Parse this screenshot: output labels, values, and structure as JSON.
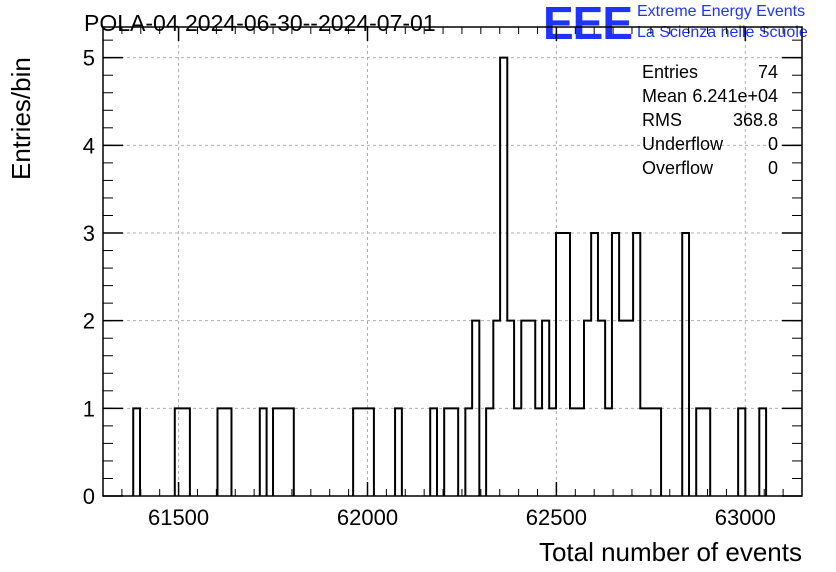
{
  "title": "POLA-04 2024-06-30--2024-07-01",
  "logo": {
    "mark": "EEE",
    "line1": "Extreme Energy Events",
    "line2": "La Scienza nelle Scuole",
    "color": "#1f33ff"
  },
  "stats": [
    {
      "key": "Entries",
      "value": "74"
    },
    {
      "key": "Mean",
      "value": "6.241e+04"
    },
    {
      "key": "RMS",
      "value": "368.8"
    },
    {
      "key": "Underflow",
      "value": "0"
    },
    {
      "key": "Overflow",
      "value": "0"
    }
  ],
  "chart_data": {
    "type": "bar",
    "title": "POLA-04 2024-06-30--2024-07-01",
    "xlabel": "Total number of events",
    "ylabel": "Entries/bin",
    "xlim": [
      61300,
      63150
    ],
    "ylim": [
      0,
      5.35
    ],
    "grid": true,
    "xticks": [
      61500,
      62000,
      62500,
      63000
    ],
    "yticks": [
      0,
      1,
      2,
      3,
      4,
      5
    ],
    "bins": [
      {
        "x0": 61380,
        "x1": 61398,
        "y": 1
      },
      {
        "x0": 61490,
        "x1": 61530,
        "y": 1
      },
      {
        "x0": 61603,
        "x1": 61640,
        "y": 1
      },
      {
        "x0": 61715,
        "x1": 61733,
        "y": 1
      },
      {
        "x0": 61750,
        "x1": 61805,
        "y": 1
      },
      {
        "x0": 61962,
        "x1": 62017,
        "y": 1
      },
      {
        "x0": 62073,
        "x1": 62091,
        "y": 1
      },
      {
        "x0": 62166,
        "x1": 62184,
        "y": 1
      },
      {
        "x0": 62203,
        "x1": 62240,
        "y": 1
      },
      {
        "x0": 62259,
        "x1": 62277,
        "y": 1
      },
      {
        "x0": 62277,
        "x1": 62296,
        "y": 2
      },
      {
        "x0": 62314,
        "x1": 62333,
        "y": 1
      },
      {
        "x0": 62333,
        "x1": 62351,
        "y": 2
      },
      {
        "x0": 62351,
        "x1": 62370,
        "y": 5
      },
      {
        "x0": 62370,
        "x1": 62388,
        "y": 2
      },
      {
        "x0": 62388,
        "x1": 62407,
        "y": 1
      },
      {
        "x0": 62407,
        "x1": 62444,
        "y": 2
      },
      {
        "x0": 62444,
        "x1": 62462,
        "y": 1
      },
      {
        "x0": 62462,
        "x1": 62481,
        "y": 2
      },
      {
        "x0": 62481,
        "x1": 62499,
        "y": 1
      },
      {
        "x0": 62499,
        "x1": 62536,
        "y": 3
      },
      {
        "x0": 62536,
        "x1": 62573,
        "y": 1
      },
      {
        "x0": 62573,
        "x1": 62592,
        "y": 2
      },
      {
        "x0": 62592,
        "x1": 62610,
        "y": 3
      },
      {
        "x0": 62610,
        "x1": 62629,
        "y": 2
      },
      {
        "x0": 62629,
        "x1": 62647,
        "y": 1
      },
      {
        "x0": 62647,
        "x1": 62666,
        "y": 3
      },
      {
        "x0": 62666,
        "x1": 62703,
        "y": 2
      },
      {
        "x0": 62703,
        "x1": 62722,
        "y": 3
      },
      {
        "x0": 62722,
        "x1": 62777,
        "y": 1
      },
      {
        "x0": 62833,
        "x1": 62851,
        "y": 3
      },
      {
        "x0": 62870,
        "x1": 62907,
        "y": 1
      },
      {
        "x0": 62981,
        "x1": 63000,
        "y": 1
      },
      {
        "x0": 63037,
        "x1": 63055,
        "y": 1
      }
    ]
  }
}
